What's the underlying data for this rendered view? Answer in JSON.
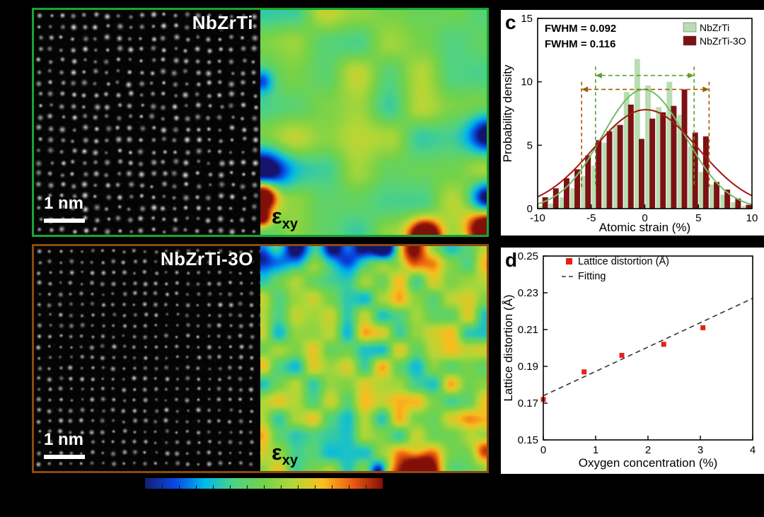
{
  "figure": {
    "background": "#000000",
    "panel_letters": {
      "c": "c",
      "d": "d"
    }
  },
  "micrographs": {
    "top": {
      "label": "NbZrTi",
      "border_color": "#18a532",
      "scale_bar_label": "1 nm",
      "strain_label_base": "ε",
      "strain_label_sub": "xy"
    },
    "bottom": {
      "label": "NbZrTi-3O",
      "border_color": "#8a4a10",
      "scale_bar_label": "1 nm",
      "strain_label_base": "ε",
      "strain_label_sub": "xy"
    },
    "colorbar_colors": [
      "#141e6e",
      "#0a46e6",
      "#00b9eb",
      "#50d282",
      "#73d24b",
      "#b4d737",
      "#fabe1e",
      "#eb5a0f",
      "#820f0a"
    ]
  },
  "chart_data": [
    {
      "id": "panel-c-strain-histogram",
      "type": "bar",
      "xlabel": "Atomic strain (%)",
      "ylabel": "Probability density",
      "xlim": [
        -10,
        10
      ],
      "ylim": [
        0,
        15
      ],
      "x_ticks": [
        -10,
        -5,
        0,
        5,
        10
      ],
      "y_ticks": [
        0,
        5,
        10,
        15
      ],
      "grid": false,
      "legend_position": "top-right",
      "categories": [
        -9.5,
        -8.5,
        -7.5,
        -6.5,
        -5.5,
        -4.5,
        -3.5,
        -2.5,
        -1.5,
        -0.5,
        0.5,
        1.5,
        2.5,
        3.5,
        4.5,
        5.5,
        6.5,
        7.5,
        8.5,
        9.5
      ],
      "series": [
        {
          "name": "NbZrTi",
          "bar_color": "#b8ddb2",
          "curve_color": "#6fbf63",
          "accent_color": "#5f9e2e",
          "values": [
            0.2,
            0.4,
            0.9,
            1.6,
            2.6,
            3.4,
            5.2,
            6.6,
            9.2,
            11.8,
            9.7,
            8.0,
            10.0,
            7.4,
            4.9,
            2.9,
            1.9,
            1.1,
            0.5,
            0.2
          ],
          "fit": {
            "amp": 9.4,
            "mu": -0.1,
            "sigma": 3.9
          },
          "fwhm_label": "FWHM = 0.092",
          "fwhm_span": [
            -4.6,
            4.6
          ],
          "arrow_y": 10.5,
          "vline_range": [
            1.9,
            11.2
          ]
        },
        {
          "name": "NbZrTi-3O",
          "bar_color": "#7e1113",
          "curve_color": "#a01a12",
          "accent_color": "#a05a00",
          "values": [
            0.9,
            1.6,
            2.4,
            3.1,
            4.2,
            5.4,
            6.1,
            6.6,
            8.2,
            5.5,
            7.1,
            7.6,
            8.1,
            9.4,
            6.0,
            5.7,
            2.1,
            1.5,
            0.8,
            0.3
          ],
          "fit": {
            "amp": 7.8,
            "mu": 0.1,
            "sigma": 4.9
          },
          "fwhm_label": "FWHM = 0.116",
          "fwhm_span": [
            -5.9,
            6.0
          ],
          "arrow_y": 9.4,
          "vline_range": [
            1.7,
            10.0
          ]
        }
      ]
    },
    {
      "id": "panel-d-lattice-distortion",
      "type": "scatter",
      "xlabel": "Oxygen concentration (%)",
      "ylabel": "Lattice distortion (Å)",
      "xlim": [
        0,
        4
      ],
      "ylim": [
        0.15,
        0.25
      ],
      "x_ticks": [
        0,
        1,
        2,
        3,
        4
      ],
      "y_ticks": [
        0.15,
        0.17,
        0.19,
        0.21,
        0.23,
        0.25
      ],
      "point_color": "#e32119",
      "points": [
        [
          0,
          0.172
        ],
        [
          0.78,
          0.187
        ],
        [
          1.5,
          0.196
        ],
        [
          2.3,
          0.202
        ],
        [
          3.05,
          0.211
        ]
      ],
      "fit_line": {
        "x": [
          0,
          4
        ],
        "y": [
          0.174,
          0.227
        ],
        "style": "dashed",
        "color": "#333333"
      },
      "legend_position": "top-left",
      "legend": [
        {
          "marker": "square",
          "color": "#e32119",
          "label": "Lattice distortion (Å)"
        },
        {
          "marker": "dashed-line",
          "color": "#333333",
          "label": "Fitting"
        }
      ]
    }
  ]
}
